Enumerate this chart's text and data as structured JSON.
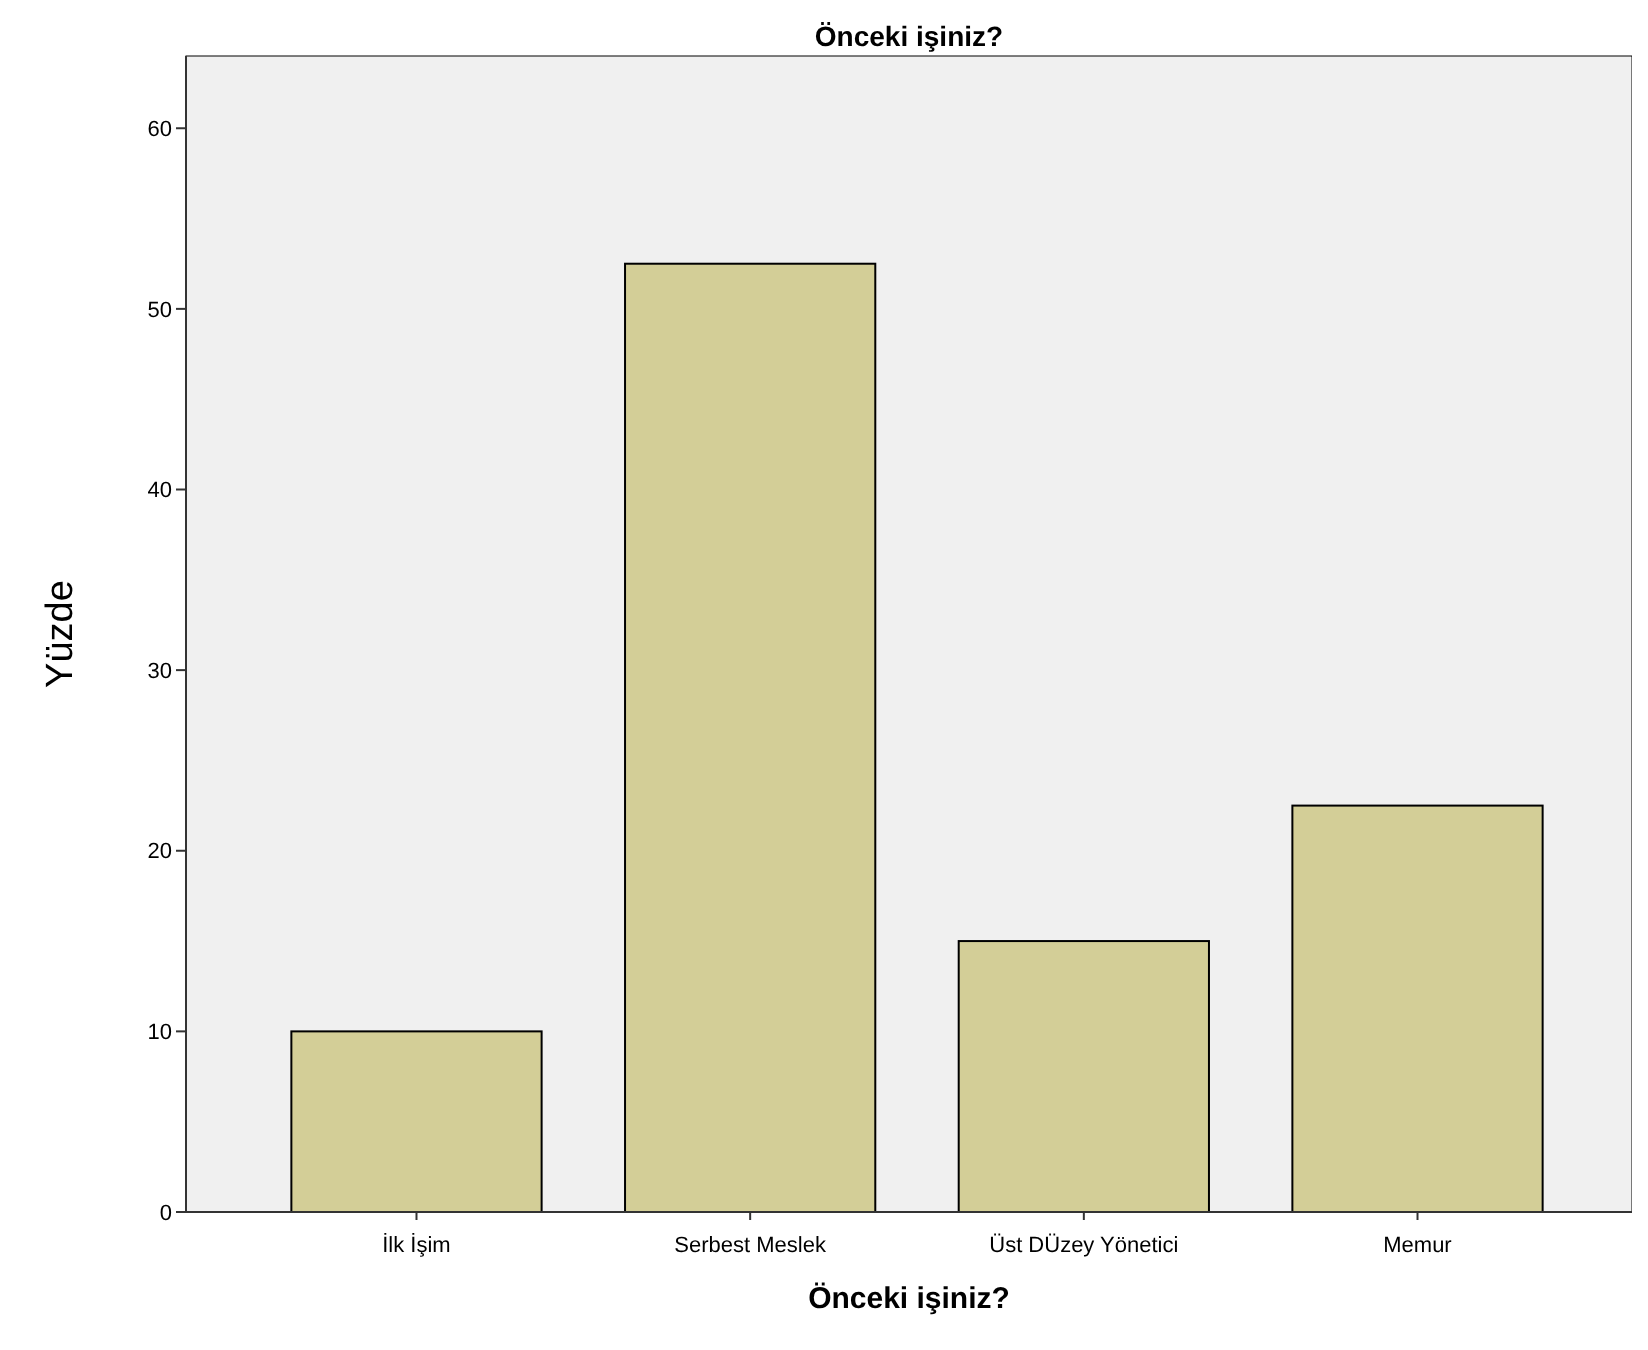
{
  "chart_data": {
    "type": "bar",
    "title": "Önceki işiniz?",
    "xlabel": "Önceki işiniz?",
    "ylabel": "Yüzde",
    "categories": [
      "İlk İşim",
      "Serbest Meslek",
      "Üst DÜzey Yönetici",
      "Memur"
    ],
    "values": [
      10,
      52.5,
      15,
      22.5
    ],
    "color": "#d3ce97",
    "ylim": [
      0,
      64
    ],
    "yticks": [
      0,
      10,
      20,
      30,
      40,
      50,
      60
    ],
    "grid": false
  }
}
